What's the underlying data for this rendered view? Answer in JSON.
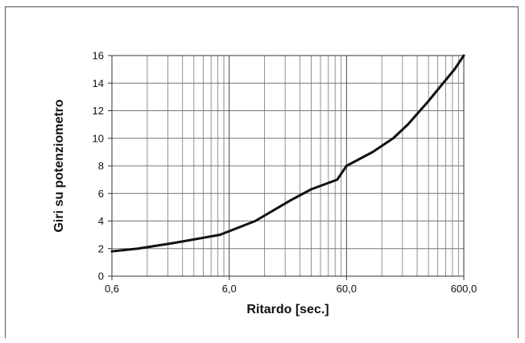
{
  "chart_data": {
    "type": "line",
    "title": "",
    "xlabel": "Ritardo [sec.]",
    "ylabel": "Giri su potenziometro",
    "x_scale": "log",
    "xlim": [
      0.6,
      600.0
    ],
    "ylim": [
      0,
      16
    ],
    "x_tick_labels": [
      "0,6",
      "6,0",
      "60,0",
      "600,0"
    ],
    "x_tick_values": [
      0.6,
      6.0,
      60.0,
      600.0
    ],
    "y_ticks": [
      0,
      2,
      4,
      6,
      8,
      10,
      12,
      14,
      16
    ],
    "grid": true,
    "legend": "none",
    "line_color": "#111111",
    "grid_color": "#777777",
    "series": [
      {
        "x": [
          0.6,
          1.0,
          2.0,
          5.0,
          10.0,
          20.0,
          30.0,
          50.0,
          60.0,
          100.0,
          150.0,
          200.0,
          300.0,
          400.0,
          500.0,
          600.0
        ],
        "values": [
          1.8,
          2.0,
          2.4,
          3.0,
          4.0,
          5.5,
          6.3,
          7.0,
          8.0,
          9.0,
          10.0,
          11.0,
          12.7,
          14.0,
          15.0,
          16.0
        ]
      }
    ]
  }
}
